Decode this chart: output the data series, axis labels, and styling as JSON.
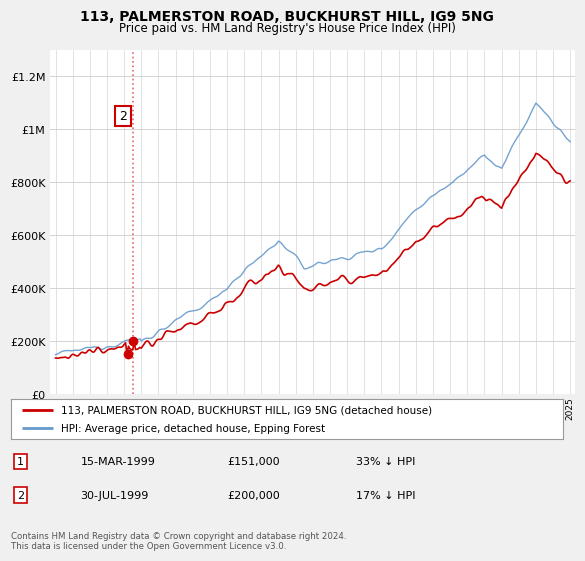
{
  "title": "113, PALMERSTON ROAD, BUCKHURST HILL, IG9 5NG",
  "subtitle": "Price paid vs. HM Land Registry's House Price Index (HPI)",
  "legend_line1": "113, PALMERSTON ROAD, BUCKHURST HILL, IG9 5NG (detached house)",
  "legend_line2": "HPI: Average price, detached house, Epping Forest",
  "transaction1_date": "15-MAR-1999",
  "transaction1_price": "£151,000",
  "transaction1_hpi": "33% ↓ HPI",
  "transaction2_date": "30-JUL-1999",
  "transaction2_price": "£200,000",
  "transaction2_hpi": "17% ↓ HPI",
  "footnote": "Contains HM Land Registry data © Crown copyright and database right 2024.\nThis data is licensed under the Open Government Licence v3.0.",
  "red_color": "#cc0000",
  "blue_color": "#6699cc",
  "dashed_line_color": "#dd4444",
  "background_color": "#f0f0f0",
  "plot_bg_color": "#ffffff",
  "yticks": [
    0,
    200000,
    400000,
    600000,
    800000,
    1000000,
    1200000
  ],
  "ytick_labels": [
    "£0",
    "£200K",
    "£400K",
    "£600K",
    "£800K",
    "£1M",
    "£1.2M"
  ]
}
